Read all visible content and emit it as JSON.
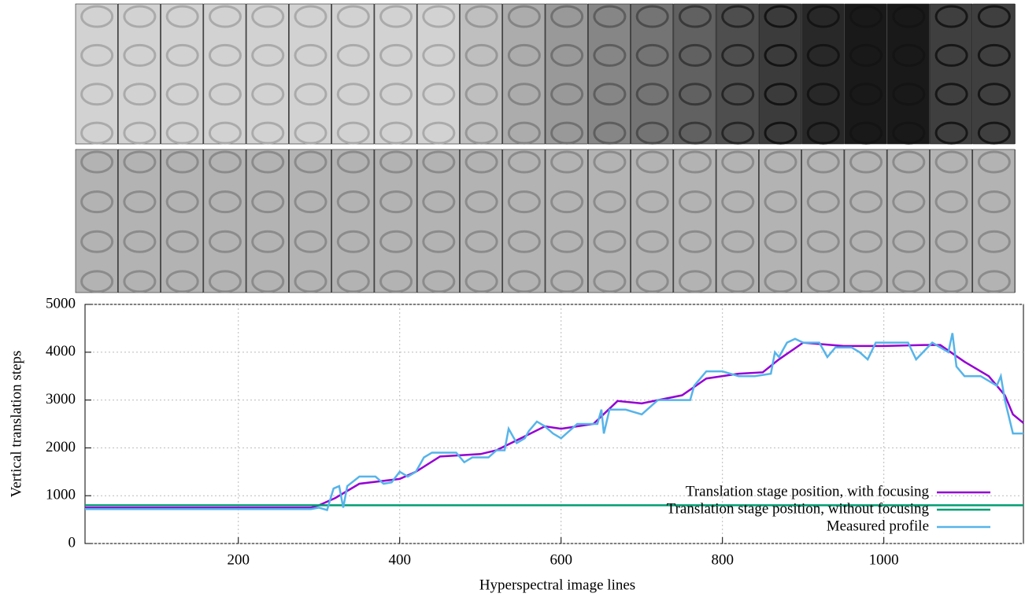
{
  "chart_data": {
    "type": "line",
    "x_label": "Hyperspectral image lines",
    "y_label": "Vertical translation steps",
    "xlim": [
      10,
      1173
    ],
    "ylim": [
      0,
      5000
    ],
    "xticks": [
      200,
      400,
      600,
      800,
      1000
    ],
    "yticks": [
      0,
      1000,
      2000,
      3000,
      4000,
      5000
    ],
    "grid": true,
    "legend": "lower right",
    "series": [
      {
        "name": "Translation stage position, with focusing",
        "color": "#9400d3",
        "x": [
          10,
          290,
          300,
          320,
          350,
          400,
          420,
          450,
          500,
          520,
          550,
          580,
          600,
          640,
          670,
          700,
          750,
          780,
          820,
          850,
          870,
          900,
          950,
          1000,
          1050,
          1070,
          1100,
          1130,
          1150,
          1160,
          1173
        ],
        "values": [
          750,
          750,
          800,
          950,
          1250,
          1350,
          1500,
          1820,
          1870,
          1950,
          2200,
          2450,
          2400,
          2500,
          2980,
          2930,
          3100,
          3450,
          3550,
          3580,
          3850,
          4200,
          4130,
          4130,
          4150,
          4150,
          3800,
          3500,
          3100,
          2700,
          2520
        ]
      },
      {
        "name": "Translation stage position, without focusing",
        "color": "#009e73",
        "x": [
          10,
          1173
        ],
        "values": [
          800,
          800
        ]
      },
      {
        "name": "Measured profile",
        "color": "#56b4e9",
        "x": [
          10,
          290,
          300,
          310,
          318,
          325,
          330,
          335,
          350,
          370,
          380,
          390,
          400,
          410,
          420,
          430,
          440,
          470,
          480,
          490,
          510,
          520,
          530,
          535,
          545,
          555,
          560,
          570,
          580,
          590,
          600,
          620,
          645,
          650,
          653,
          660,
          680,
          700,
          720,
          740,
          760,
          765,
          775,
          780,
          800,
          820,
          840,
          860,
          865,
          870,
          880,
          890,
          900,
          920,
          930,
          940,
          960,
          970,
          980,
          990,
          1030,
          1040,
          1060,
          1070,
          1080,
          1085,
          1090,
          1100,
          1120,
          1140,
          1145,
          1150,
          1160,
          1173
        ],
        "values": [
          720,
          720,
          750,
          700,
          1150,
          1200,
          750,
          1200,
          1400,
          1400,
          1250,
          1280,
          1500,
          1400,
          1500,
          1800,
          1900,
          1900,
          1700,
          1800,
          1800,
          1950,
          1950,
          2400,
          2100,
          2200,
          2350,
          2550,
          2450,
          2300,
          2200,
          2500,
          2500,
          2800,
          2300,
          2800,
          2800,
          2700,
          3000,
          3000,
          3000,
          3300,
          3500,
          3600,
          3600,
          3500,
          3500,
          3550,
          4000,
          3900,
          4200,
          4280,
          4200,
          4200,
          3900,
          4100,
          4100,
          4000,
          3850,
          4200,
          4200,
          3850,
          4200,
          4100,
          4000,
          4400,
          3700,
          3500,
          3500,
          3300,
          3500,
          3000,
          2300,
          2300
        ]
      }
    ]
  }
}
